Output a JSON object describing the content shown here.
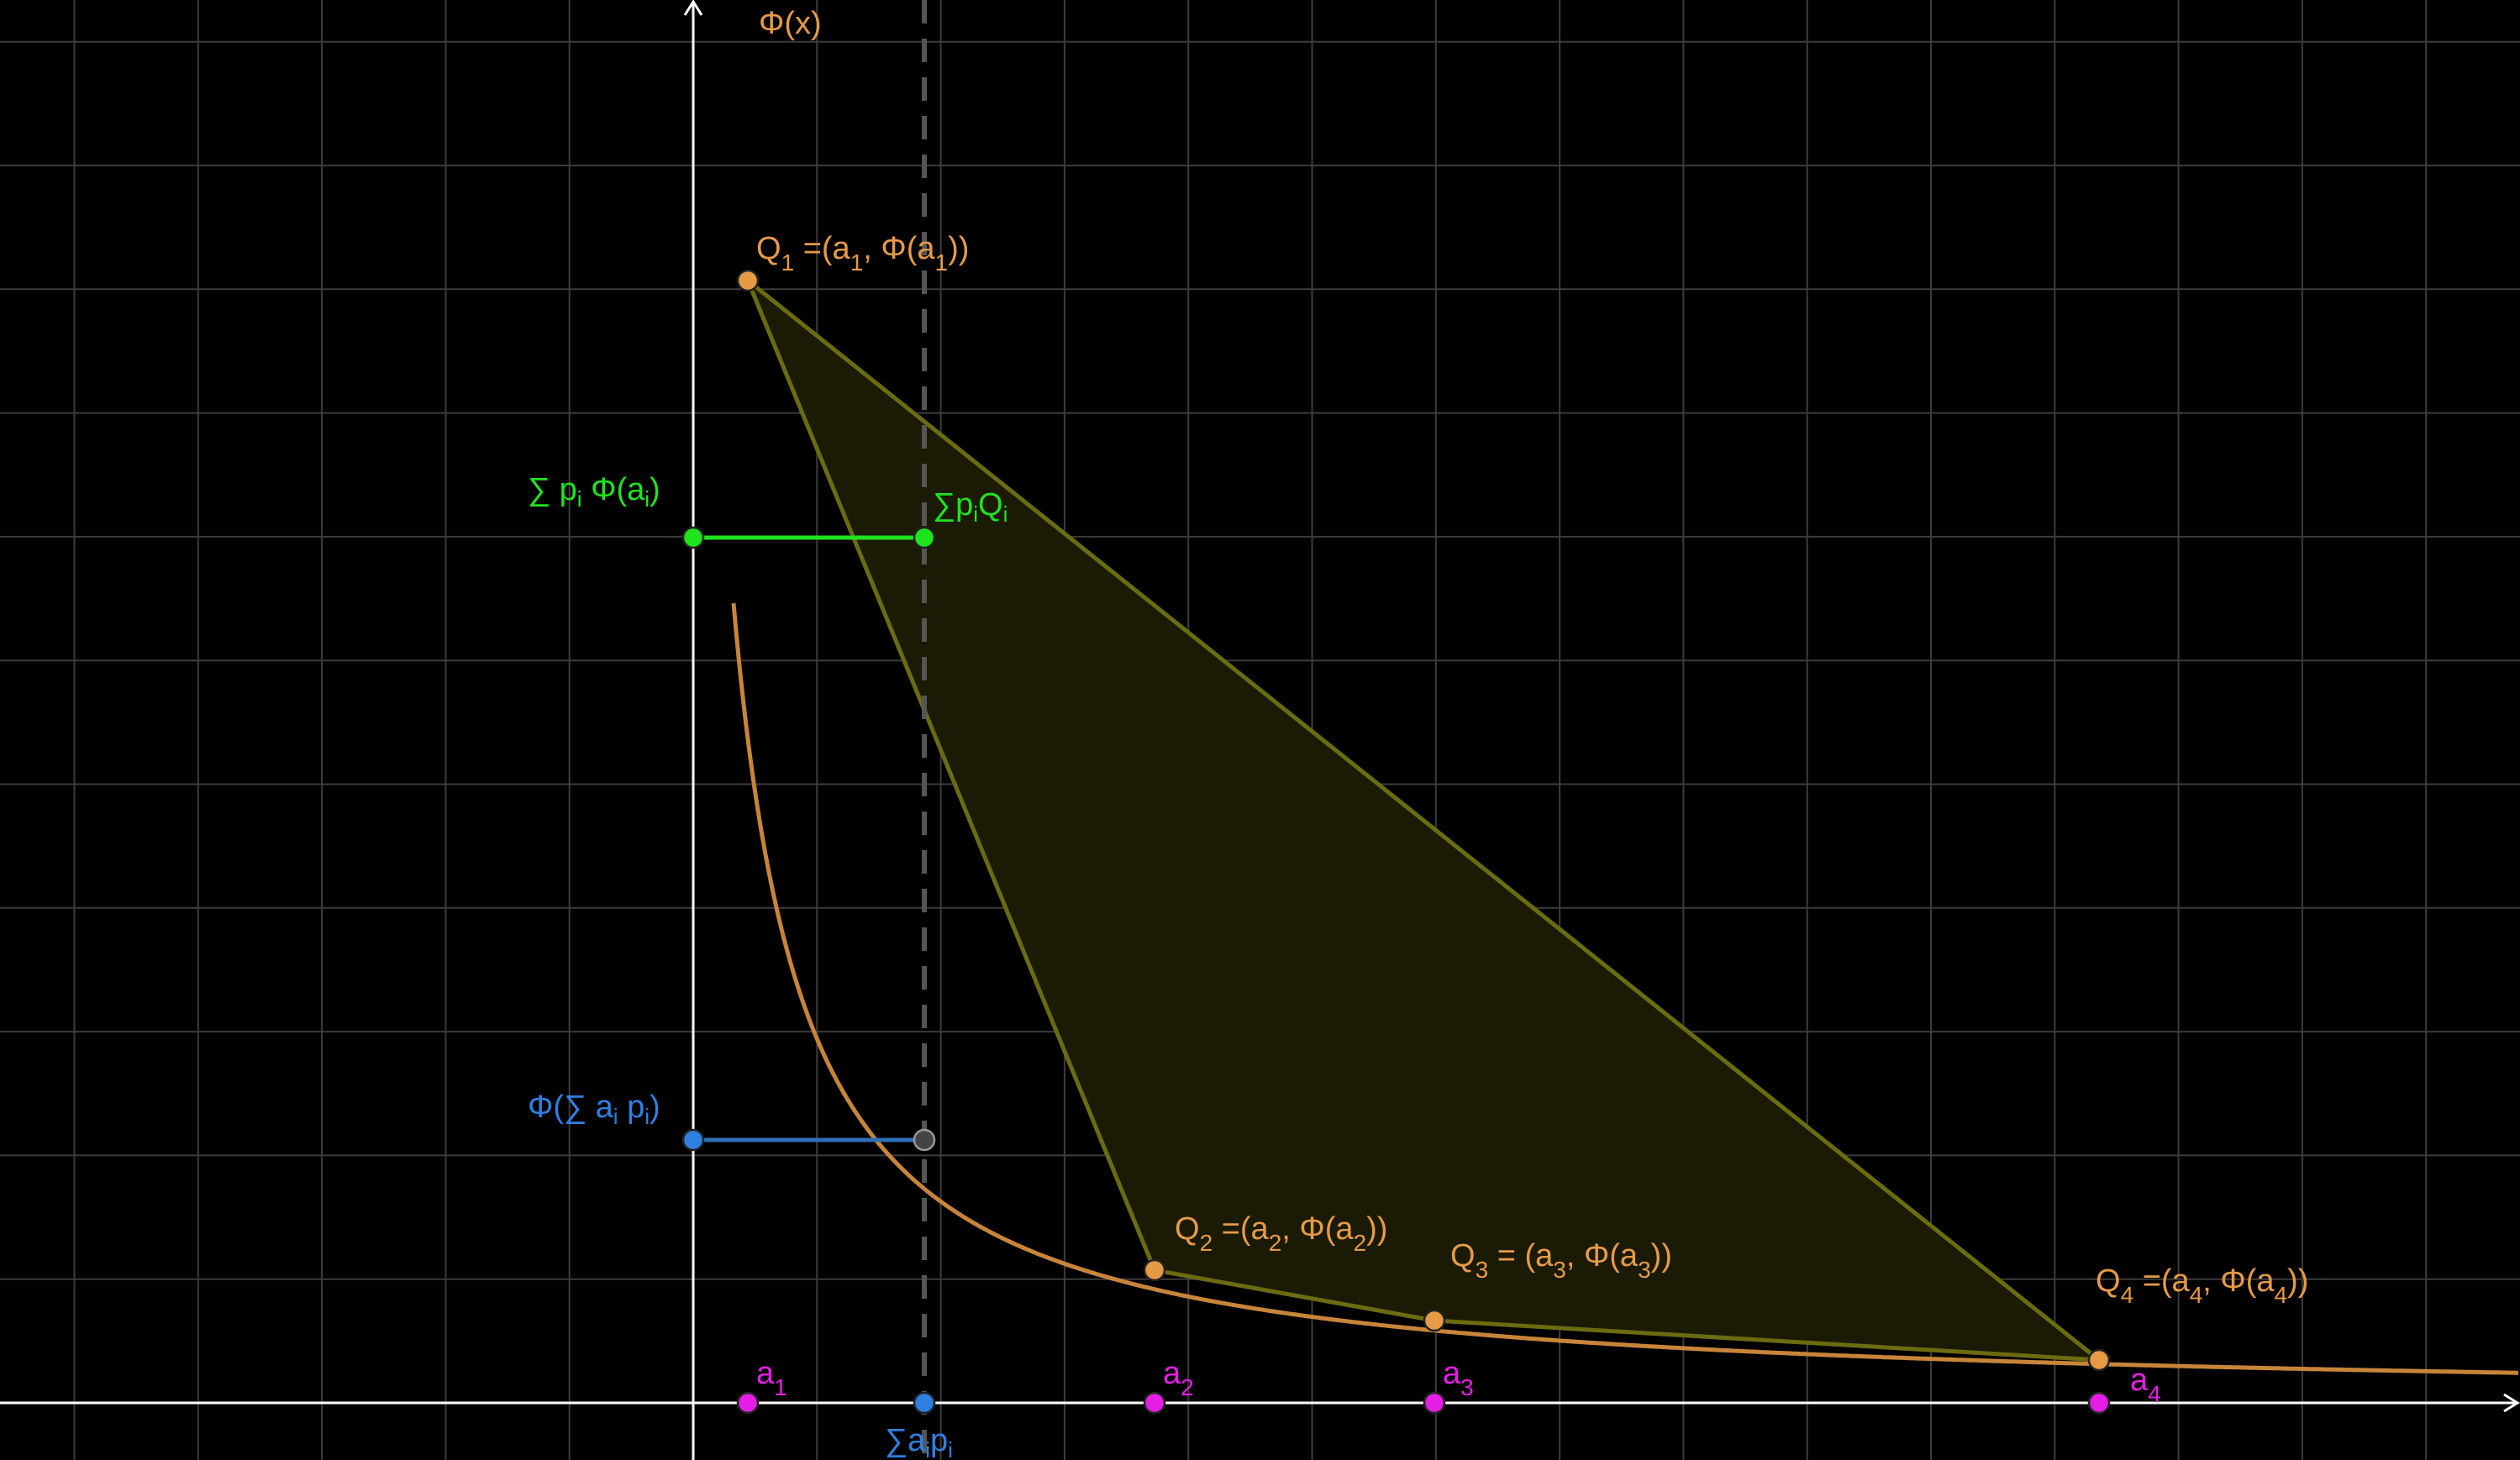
{
  "labels": {
    "phi_x": "Φ(x)",
    "q1": {
      "main": "Q",
      "sub": "1",
      "rest_a": " =(a",
      "sub2": "1",
      "rest_b": ", Φ(a",
      "sub3": "1",
      "end": "))"
    },
    "q2": {
      "main": "Q",
      "sub": "2",
      "rest_a": " =(a",
      "sub2": "2",
      "rest_b": ", Φ(a",
      "sub3": "2",
      "end": "))"
    },
    "q3": {
      "main": "Q",
      "sub": "3",
      "rest_a": " = (a",
      "sub2": "3",
      "rest_b": ", Φ(a",
      "sub3": "3",
      "end": "))"
    },
    "q4": {
      "main": "Q",
      "sub": "4",
      "rest_a": " =(a",
      "sub2": "4",
      "rest_b": ", Φ(a",
      "sub3": "4",
      "end": "))"
    },
    "sum_p_phi": {
      "a": "∑ p",
      "sub": "i",
      "b": " Φ(a",
      "sub2": "i",
      "c": ")"
    },
    "sum_pQ": {
      "a": "∑p",
      "sub": "i",
      "b": "Q",
      "sub2": "i"
    },
    "phi_sum": {
      "a": "Φ(∑ a",
      "sub": "i",
      "b": " p",
      "sub2": "i",
      "c": ")"
    },
    "sum_ap": {
      "a": "∑a",
      "sub": "i",
      "b": "p",
      "sub2": "i"
    },
    "a1": {
      "main": "a",
      "sub": "1"
    },
    "a2": {
      "main": "a",
      "sub": "2"
    },
    "a3": {
      "main": "a",
      "sub": "3"
    },
    "a4": {
      "main": "a",
      "sub": "4"
    }
  },
  "colors": {
    "background": "#000000",
    "grid": "#404040",
    "axis": "#ffffff",
    "curve": "#c8853a",
    "hull_stroke": "#6b6b10",
    "hull_fill": "#1a1a05",
    "orange_point": "#e69a45",
    "magenta": "#e41ee4",
    "green": "#1ee41e",
    "blue": "#2f7fe0",
    "blue_line": "#2f6fb8",
    "dashed": "#555555"
  }
}
